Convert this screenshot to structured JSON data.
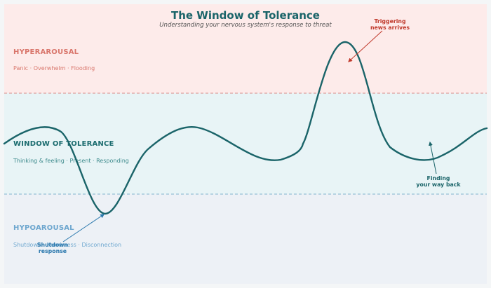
{
  "title": "The Window of Tolerance",
  "subtitle": "Understanding your nervous system's response to threat",
  "zones": {
    "hyper": {
      "name": "HYPERAROUSAL",
      "desc": "Panic · Overwhelm · Flooding"
    },
    "window": {
      "name": "WINDOW OF TOLERANCE",
      "desc": "Thinking & feeling · Present · Responding"
    },
    "hypo": {
      "name": "HYPOAROUSAL",
      "desc": "Shutdown · Numbness · Disconnection"
    }
  },
  "annotations": {
    "trigger": {
      "line1": "Triggering",
      "line2": "news arrives"
    },
    "shutdown": {
      "line1": "Shutdown",
      "line2": "response"
    },
    "finding": {
      "line1": "Finding",
      "line2": "your way back"
    }
  },
  "colors": {
    "page_bg": "#f4f6f7",
    "hyper_bg": "#fdebea",
    "window_bg": "#e8f4f6",
    "hypo_bg": "#edf1f6",
    "hyper_text": "#d9766c",
    "window_text": "#1a6b6e",
    "window_desc": "#3d8a8c",
    "hypo_text": "#6ea7cf",
    "curve": "#1a6469",
    "trigger": "#c0392b",
    "shutdown": "#2a78ad",
    "finding": "#1a6469",
    "hyper_line": "#d98a86",
    "hypo_line": "#7fb3cf",
    "title": "#1a6469",
    "subtitle": "#555555"
  }
}
